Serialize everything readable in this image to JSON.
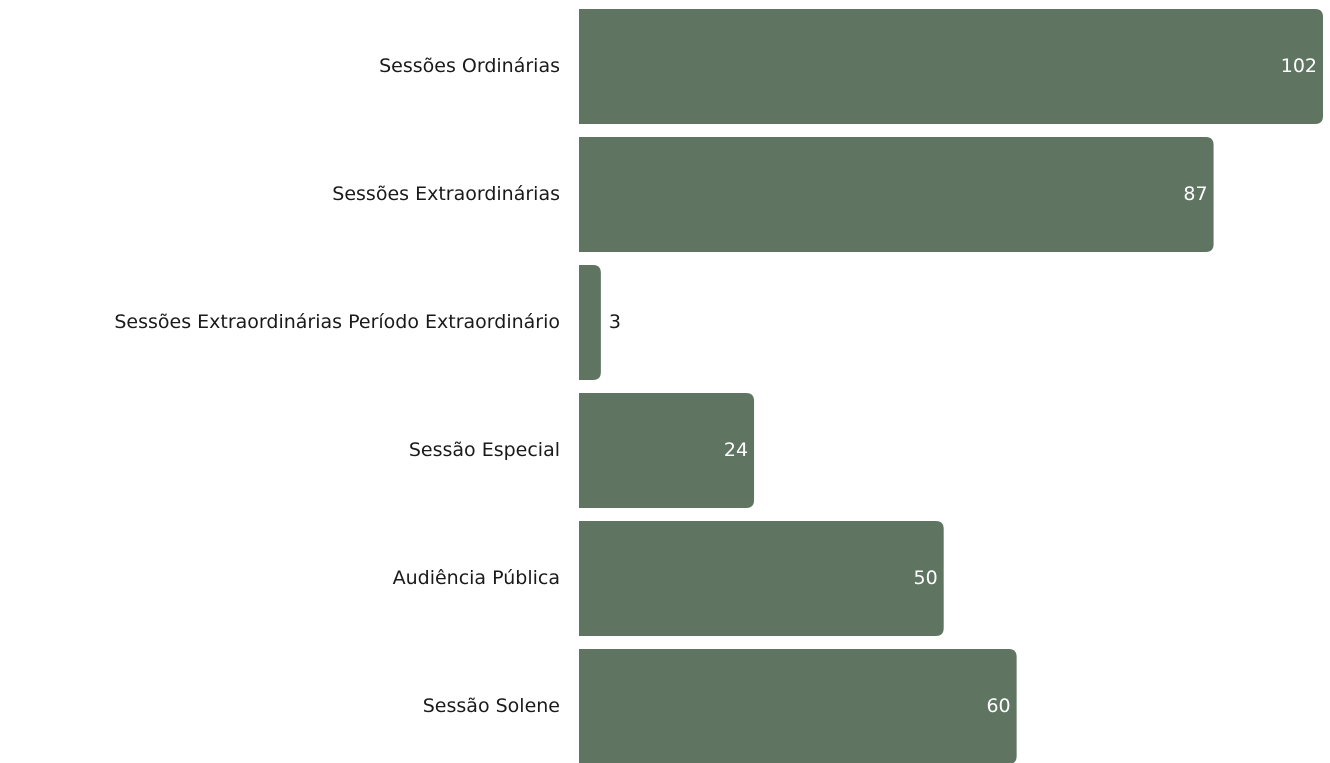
{
  "chart_data": {
    "type": "bar",
    "orientation": "horizontal",
    "categories": [
      "Sessões Ordinárias",
      "Sessões Extraordinárias",
      "Sessões Extraordinárias Período Extraordinário",
      "Sessão Especial",
      "Audiência Pública",
      "Sessão Solene"
    ],
    "values": [
      102,
      87,
      3,
      24,
      50,
      60
    ],
    "color": "#5f7562"
  }
}
